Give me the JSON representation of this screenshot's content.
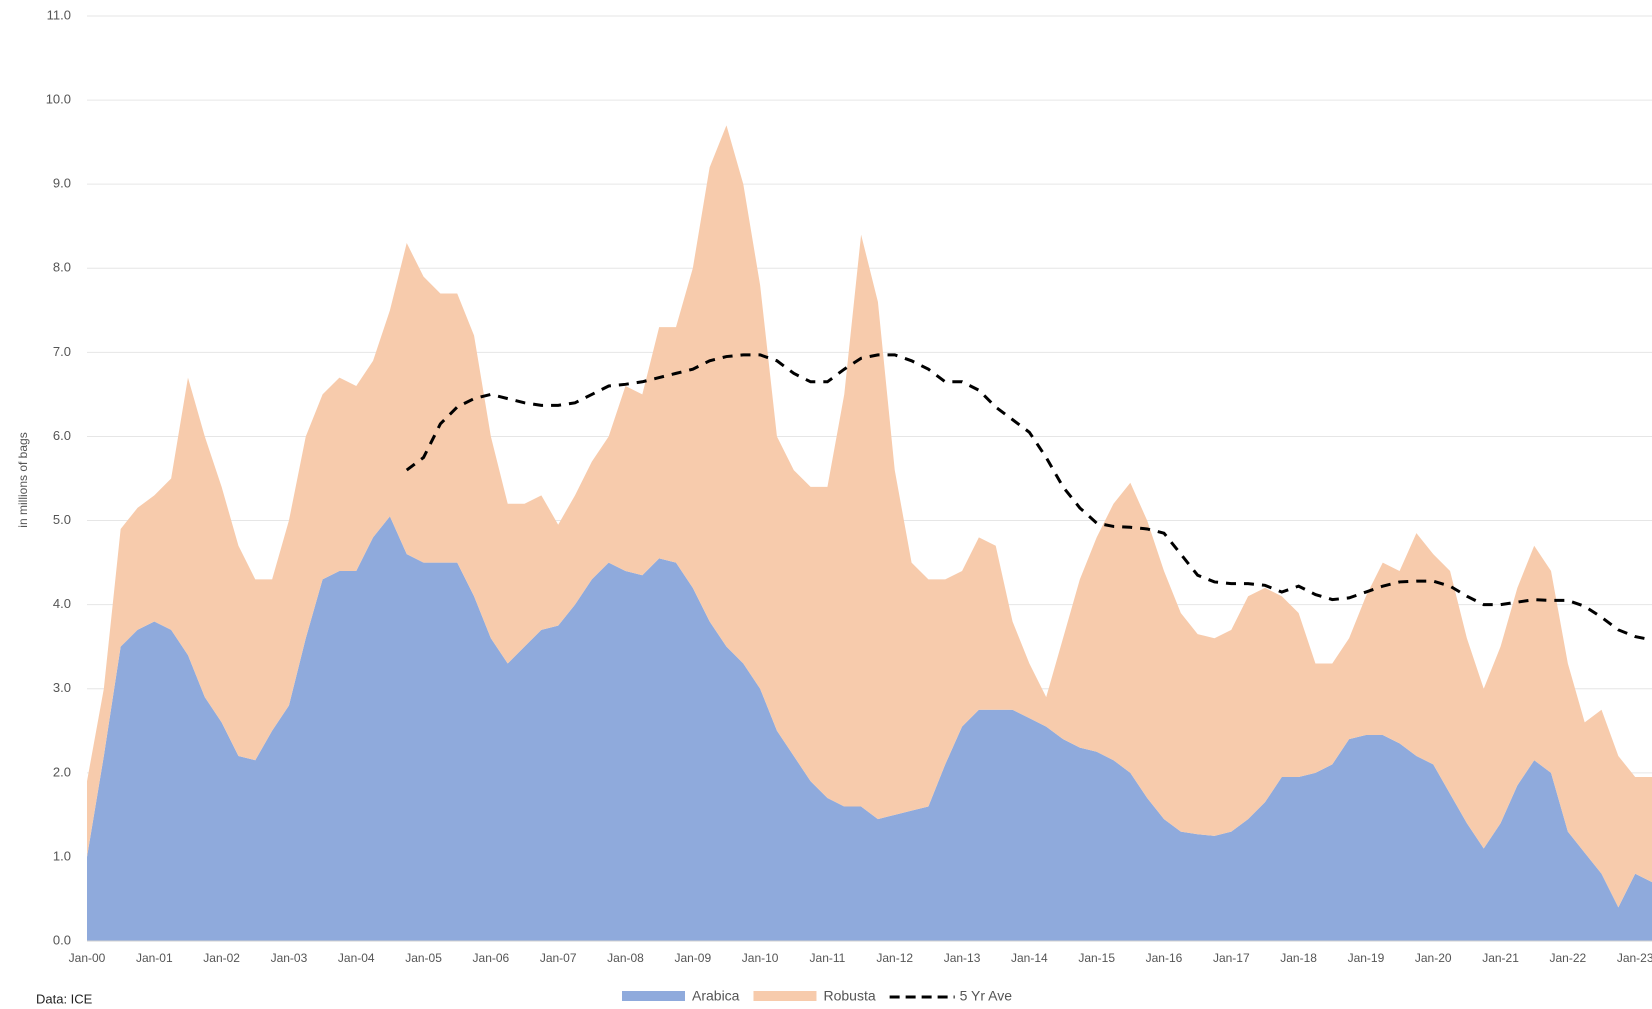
{
  "chart_data": {
    "type": "stacked_area",
    "y_label": "in millions of bags",
    "source": "Data: ICE",
    "categories": [
      "Jan-00",
      null,
      null,
      null,
      "Jan-01",
      null,
      null,
      null,
      "Jan-02",
      null,
      null,
      null,
      "Jan-03",
      null,
      null,
      null,
      "Jan-04",
      null,
      null,
      null,
      "Jan-05",
      null,
      null,
      null,
      "Jan-06",
      null,
      null,
      null,
      "Jan-07",
      null,
      null,
      null,
      "Jan-08",
      null,
      null,
      null,
      "Jan-09",
      null,
      null,
      null,
      "Jan-10",
      null,
      null,
      null,
      "Jan-11",
      null,
      null,
      null,
      "Jan-12",
      null,
      null,
      null,
      "Jan-13",
      null,
      null,
      null,
      "Jan-14",
      null,
      null,
      null,
      "Jan-15",
      null,
      null,
      null,
      "Jan-16",
      null,
      null,
      null,
      "Jan-17",
      null,
      null,
      null,
      "Jan-18",
      null,
      null,
      null,
      "Jan-19",
      null,
      null,
      null,
      "Jan-20",
      null,
      null,
      null,
      "Jan-21",
      null,
      null,
      null,
      "Jan-22",
      null,
      null,
      null,
      "Jan-23",
      null
    ],
    "series": [
      {
        "name": "Arabica",
        "kind": "area",
        "color": "#8faadc",
        "values": [
          1.0,
          2.2,
          3.5,
          3.7,
          3.8,
          3.7,
          3.4,
          2.9,
          2.6,
          2.2,
          2.15,
          2.5,
          2.8,
          3.6,
          4.3,
          4.4,
          4.4,
          4.8,
          5.05,
          4.6,
          4.5,
          4.5,
          4.5,
          4.1,
          3.6,
          3.3,
          3.5,
          3.7,
          3.75,
          4.0,
          4.3,
          4.5,
          4.4,
          4.35,
          4.55,
          4.5,
          4.2,
          3.8,
          3.5,
          3.3,
          3.0,
          2.5,
          2.2,
          1.9,
          1.7,
          1.6,
          1.6,
          1.45,
          1.5,
          1.55,
          1.6,
          2.1,
          2.55,
          2.75,
          2.75,
          2.75,
          2.65,
          2.55,
          2.4,
          2.3,
          2.25,
          2.15,
          2.0,
          1.7,
          1.45,
          1.3,
          1.27,
          1.25,
          1.3,
          1.45,
          1.65,
          1.95,
          1.95,
          2.0,
          2.1,
          2.4,
          2.45,
          2.45,
          2.35,
          2.2,
          2.1,
          1.75,
          1.4,
          1.1,
          1.4,
          1.85,
          2.15,
          2.0,
          1.3,
          1.05,
          0.8,
          0.4,
          0.8,
          0.7
        ]
      },
      {
        "name": "Robusta",
        "kind": "area",
        "color": "#f7cbac",
        "values": [
          0.9,
          0.8,
          1.4,
          1.45,
          1.5,
          1.8,
          3.3,
          3.1,
          2.8,
          2.5,
          2.15,
          1.8,
          2.2,
          2.4,
          2.2,
          2.3,
          2.2,
          2.1,
          2.45,
          3.7,
          3.4,
          3.2,
          3.2,
          3.1,
          2.4,
          1.9,
          1.7,
          1.6,
          1.2,
          1.3,
          1.4,
          1.5,
          2.2,
          2.15,
          2.75,
          2.8,
          3.8,
          5.4,
          6.2,
          5.7,
          4.8,
          3.5,
          3.4,
          3.5,
          3.7,
          4.9,
          6.8,
          6.15,
          4.1,
          2.95,
          2.7,
          2.2,
          1.85,
          2.05,
          1.95,
          1.05,
          0.65,
          0.35,
          1.2,
          2.0,
          2.55,
          3.05,
          3.45,
          3.3,
          2.95,
          2.6,
          2.38,
          2.35,
          2.4,
          2.65,
          2.55,
          2.15,
          1.95,
          1.3,
          1.2,
          1.2,
          1.65,
          2.05,
          2.05,
          2.65,
          2.5,
          2.65,
          2.2,
          1.9,
          2.1,
          2.35,
          2.55,
          2.4,
          2.0,
          1.55,
          1.95,
          1.8,
          1.15,
          1.25
        ]
      },
      {
        "name": "5 Yr Ave",
        "kind": "line",
        "dash": true,
        "color": "#000000",
        "values": [
          null,
          null,
          null,
          null,
          null,
          null,
          null,
          null,
          null,
          null,
          null,
          null,
          null,
          null,
          null,
          null,
          null,
          null,
          null,
          5.6,
          5.75,
          6.15,
          6.35,
          6.45,
          6.5,
          6.45,
          6.4,
          6.37,
          6.37,
          6.4,
          6.5,
          6.6,
          6.62,
          6.65,
          6.7,
          6.75,
          6.8,
          6.9,
          6.95,
          6.97,
          6.97,
          6.9,
          6.75,
          6.65,
          6.65,
          6.8,
          6.93,
          6.97,
          6.97,
          6.9,
          6.8,
          6.65,
          6.65,
          6.55,
          6.35,
          6.2,
          6.05,
          5.75,
          5.4,
          5.15,
          4.97,
          4.93,
          4.92,
          4.9,
          4.85,
          4.6,
          4.35,
          4.27,
          4.25,
          4.25,
          4.23,
          4.15,
          4.22,
          4.12,
          4.06,
          4.08,
          4.15,
          4.22,
          4.27,
          4.28,
          4.28,
          4.22,
          4.1,
          4.0,
          4.0,
          4.03,
          4.06,
          4.05,
          4.05,
          3.98,
          3.85,
          3.7,
          3.62,
          3.58
        ]
      }
    ],
    "ylim": [
      0,
      11
    ],
    "yticks": [
      {
        "value": 0,
        "label": "0.0"
      },
      {
        "value": 1,
        "label": "1.0"
      },
      {
        "value": 2,
        "label": "2.0"
      },
      {
        "value": 3,
        "label": "3.0"
      },
      {
        "value": 4,
        "label": "4.0"
      },
      {
        "value": 5,
        "label": "5.0"
      },
      {
        "value": 6,
        "label": "6.0"
      },
      {
        "value": 7,
        "label": "7.0"
      },
      {
        "value": 8,
        "label": "8.0"
      },
      {
        "value": 9,
        "label": "9.0"
      },
      {
        "value": 10,
        "label": "10.0"
      },
      {
        "value": 11,
        "label": "11.0"
      }
    ],
    "grid": true,
    "legend": "bottom"
  }
}
